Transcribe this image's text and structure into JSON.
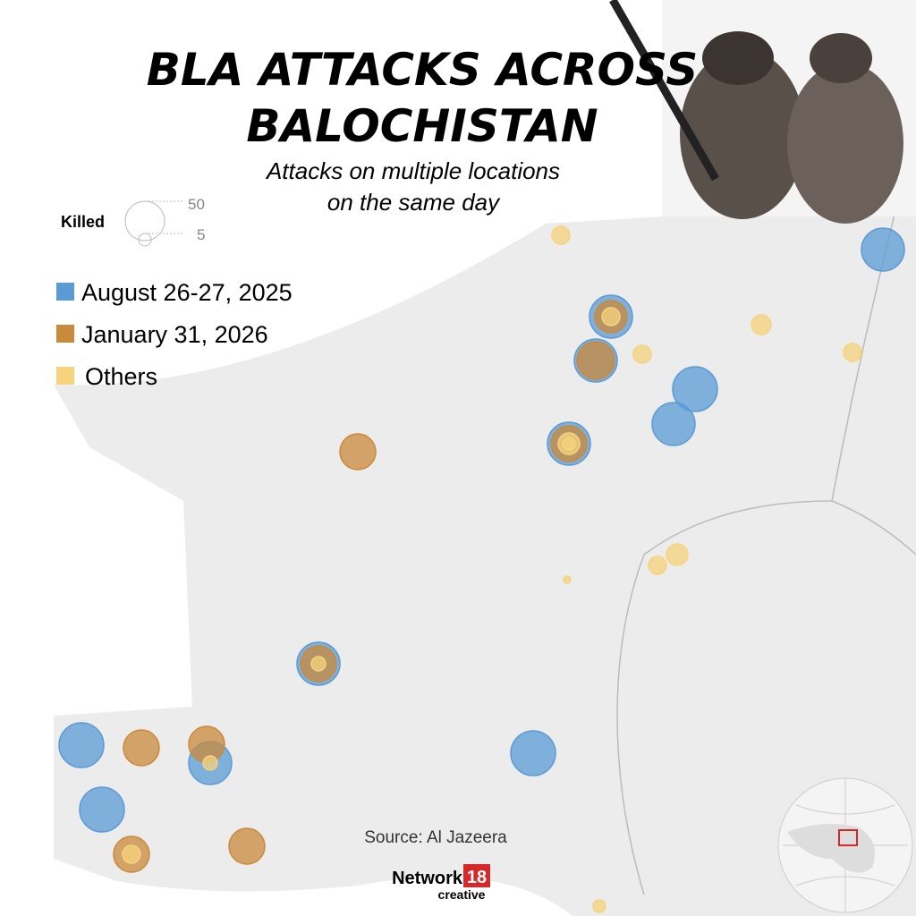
{
  "header": {
    "title_line1": "BLA ATTACKS ACROSS",
    "title_line2": "BALOCHISTAN",
    "subtitle_line1": "Attacks on multiple locations",
    "subtitle_line2": "on the same day"
  },
  "size_legend": {
    "label": "Killed",
    "large": "50",
    "small": "5"
  },
  "legend": [
    {
      "label": "August 26-27, 2025",
      "color": "#5b9bd5"
    },
    {
      "label": "January 31, 2026",
      "color": "#c98a3c"
    },
    {
      "label": "Others",
      "color": "#f6d37c"
    }
  ],
  "source": "Source: Al Jazeera",
  "brand": {
    "name": "Network",
    "number": "18",
    "sub": "creative"
  }
}
